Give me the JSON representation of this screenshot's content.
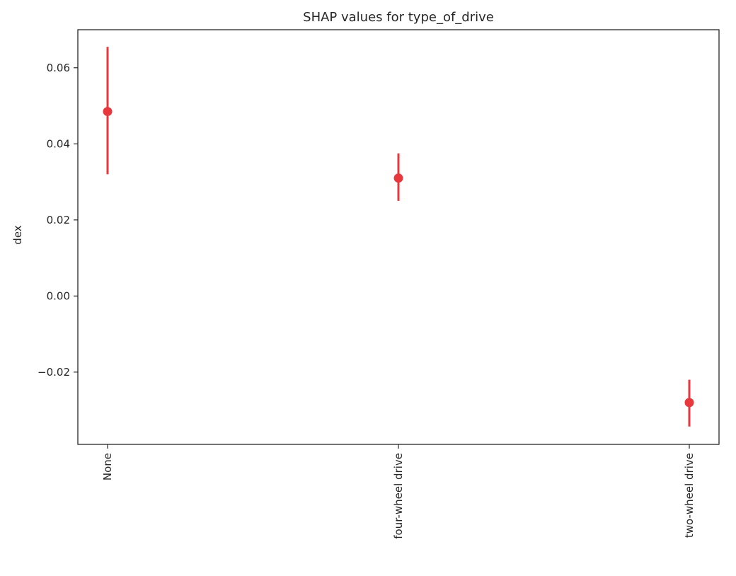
{
  "chart_data": {
    "type": "scatter",
    "title": "SHAP values for type_of_drive",
    "xlabel": "",
    "ylabel": "dex",
    "categories": [
      "None",
      "four-wheel drive",
      "two-wheel drive"
    ],
    "series": [
      {
        "values": [
          0.0485,
          0.031,
          -0.028
        ],
        "error_low": [
          0.032,
          0.025,
          -0.0343
        ],
        "error_high": [
          0.0655,
          0.0375,
          -0.022
        ]
      }
    ],
    "ylim": [
      -0.039,
      0.07
    ],
    "yticks": [
      -0.02,
      0.0,
      0.02,
      0.04,
      0.06
    ],
    "ytick_labels": [
      "−0.02",
      "0.00",
      "0.02",
      "0.04",
      "0.06"
    ],
    "grid": false,
    "xtick_rotation": "vertical",
    "color": "#e8383d"
  }
}
